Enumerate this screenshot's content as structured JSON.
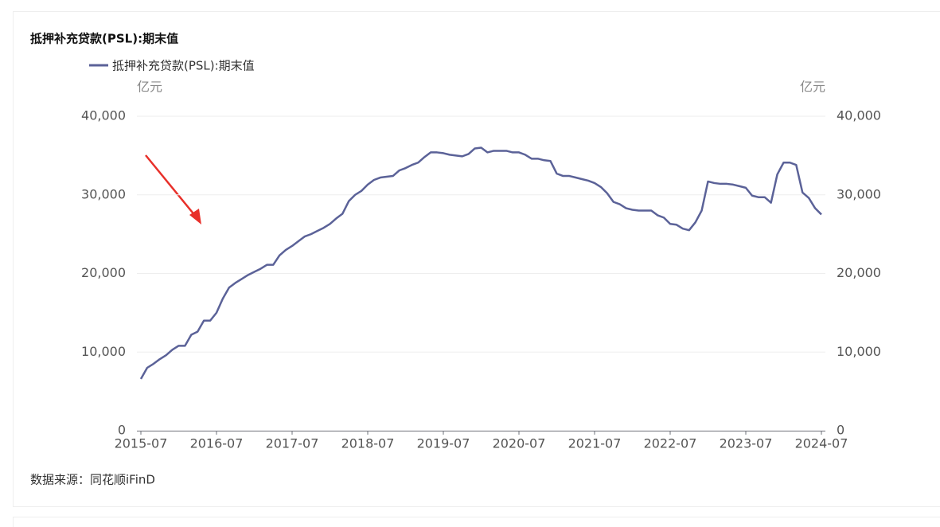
{
  "chart_data": {
    "type": "line",
    "title": "抵押补充贷款(PSL):期末值",
    "y_unit": "亿元",
    "y2_unit": "亿元",
    "source": "数据来源：同花顺iFinD",
    "categories": [
      "2015-07",
      null,
      null,
      null,
      null,
      null,
      null,
      null,
      null,
      null,
      null,
      null,
      "2016-07",
      null,
      null,
      null,
      null,
      null,
      null,
      null,
      null,
      null,
      null,
      null,
      "2017-07",
      null,
      null,
      null,
      null,
      null,
      null,
      null,
      null,
      null,
      null,
      null,
      "2018-07",
      null,
      null,
      null,
      null,
      null,
      null,
      null,
      null,
      null,
      null,
      null,
      "2019-07",
      null,
      null,
      null,
      null,
      null,
      null,
      null,
      null,
      null,
      null,
      null,
      "2020-07",
      null,
      null,
      null,
      null,
      null,
      null,
      null,
      null,
      null,
      null,
      null,
      "2021-07",
      null,
      null,
      null,
      null,
      null,
      null,
      null,
      null,
      null,
      null,
      null,
      "2022-07",
      null,
      null,
      null,
      null,
      null,
      null,
      null,
      null,
      null,
      null,
      null,
      "2023-07",
      null,
      null,
      null,
      null,
      null,
      null,
      null,
      null,
      null,
      null,
      null,
      "2024-07"
    ],
    "series": [
      {
        "name": "抵押补充贷款(PSL):期末值",
        "color": "#5b6298",
        "values": [
          6580,
          8000,
          8500,
          9100,
          9600,
          10300,
          10800,
          10800,
          12200,
          12600,
          14000,
          14000,
          15000,
          16800,
          18200,
          18800,
          19300,
          19800,
          20200,
          20600,
          21100,
          21100,
          22300,
          23000,
          23500,
          24100,
          24700,
          25000,
          25400,
          25800,
          26300,
          27000,
          27600,
          29200,
          30000,
          30500,
          31300,
          31900,
          32200,
          32300,
          32400,
          33100,
          33400,
          33800,
          34100,
          34800,
          35400,
          35400,
          35300,
          35100,
          35000,
          34900,
          35200,
          35900,
          36000,
          35400,
          35600,
          35600,
          35600,
          35400,
          35400,
          35100,
          34600,
          34600,
          34400,
          34300,
          32700,
          32400,
          32400,
          32200,
          32000,
          31800,
          31500,
          31000,
          30200,
          29100,
          28800,
          28300,
          28100,
          28000,
          28000,
          28000,
          27400,
          27100,
          26300,
          26200,
          25700,
          25500,
          26500,
          28000,
          31700,
          31500,
          31400,
          31400,
          31300,
          31100,
          30900,
          29900,
          29700,
          29700,
          29000,
          32600,
          34100,
          34100,
          33800,
          30300,
          29600,
          28300,
          27500
        ]
      }
    ],
    "ylim": [
      0,
      40000
    ],
    "yticks": [
      0,
      {
        "value": 10000,
        "label": "10,000"
      },
      {
        "value": 20000,
        "label": "20,000"
      },
      {
        "value": 30000,
        "label": "30,000"
      },
      {
        "value": 40000,
        "label": "40,000"
      }
    ],
    "y2lim": [
      0,
      40000
    ],
    "y2ticks": [
      0,
      {
        "value": 10000,
        "label": "10,000"
      },
      {
        "value": 20000,
        "label": "20,000"
      },
      {
        "value": 30000,
        "label": "30,000"
      },
      {
        "value": 40000,
        "label": "40,000"
      }
    ],
    "grid": true
  }
}
